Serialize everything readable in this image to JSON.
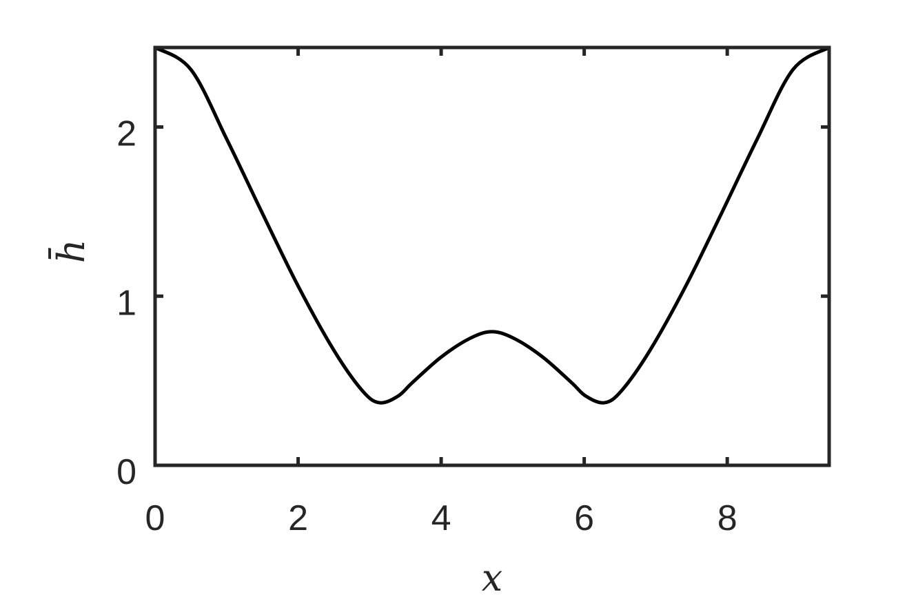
{
  "chart_data": {
    "type": "line",
    "title": "",
    "xlabel": "x",
    "ylabel": "h̄",
    "xlim": [
      0,
      9.4248
    ],
    "ylim": [
      0,
      2.47
    ],
    "xticks": [
      "0",
      "2",
      "4",
      "6",
      "8"
    ],
    "yticks": [
      "0",
      "1",
      "2"
    ],
    "grid": false,
    "line_color": "#000000",
    "axes_color": "#262626",
    "series": [
      {
        "x": [
          0,
          0.5,
          1,
          1.5,
          2,
          2.5,
          2.9,
          3.14,
          3.4,
          3.6,
          4,
          4.4,
          4.71,
          5.02,
          5.42,
          5.82,
          6.02,
          6.28,
          6.52,
          6.92,
          7.42,
          7.92,
          8.42,
          8.92,
          9.4248
        ],
        "y": [
          2.47,
          2.34,
          1.93,
          1.49,
          1.06,
          0.68,
          0.44,
          0.37,
          0.41,
          0.49,
          0.64,
          0.75,
          0.79,
          0.75,
          0.64,
          0.49,
          0.41,
          0.37,
          0.44,
          0.68,
          1.06,
          1.49,
          1.93,
          2.34,
          2.47
        ]
      }
    ]
  }
}
